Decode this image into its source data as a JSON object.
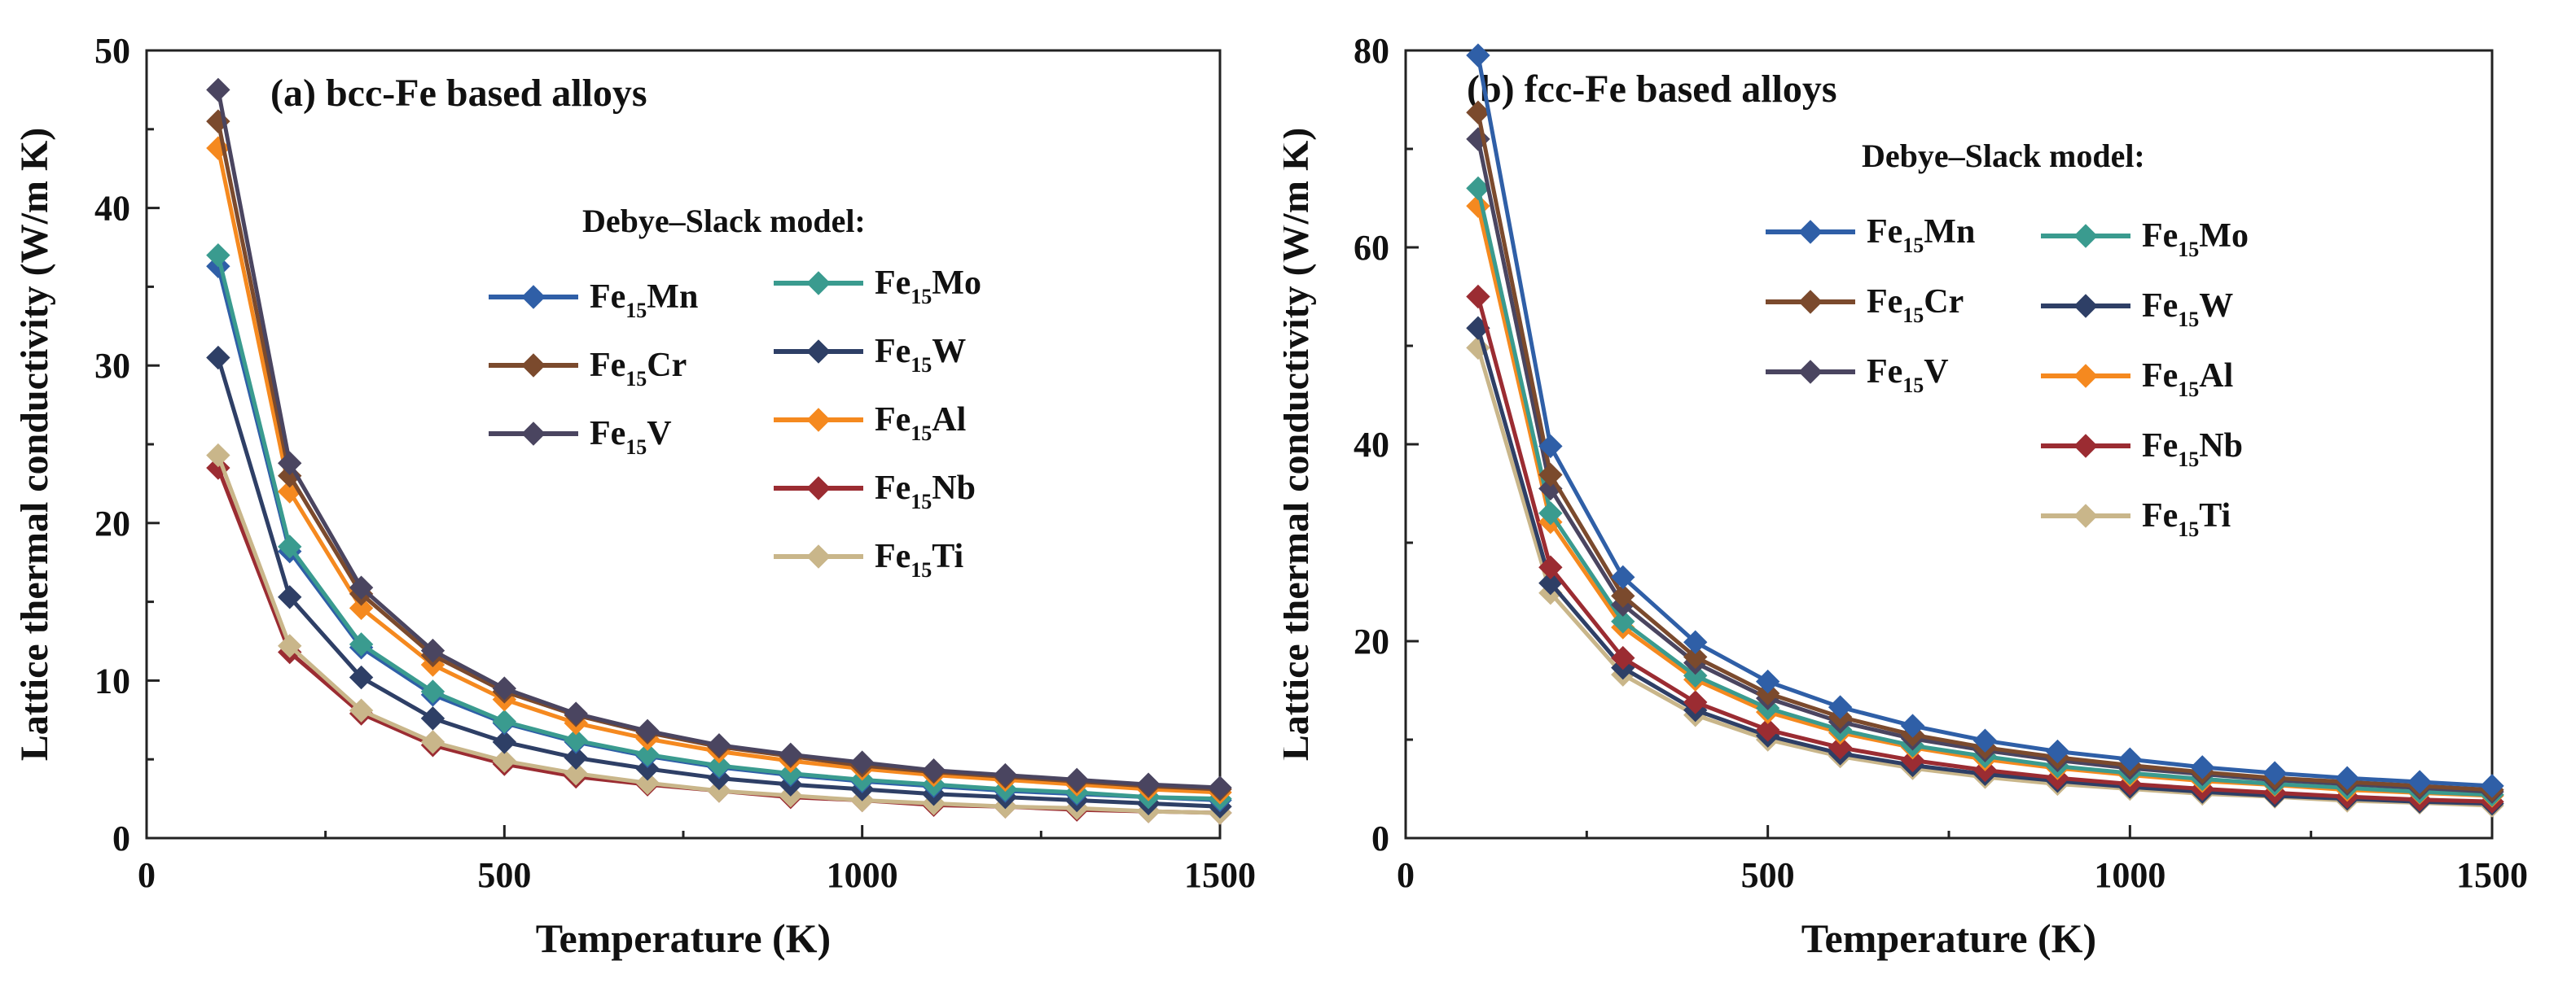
{
  "chart_data": [
    {
      "type": "line",
      "title": "(a) bcc-Fe based alloys",
      "xlabel": "Temperature (K)",
      "ylabel": "Lattice thermal conductivity (W/m K)",
      "xlim": [
        0,
        1500
      ],
      "ylim": [
        0,
        50
      ],
      "xticks": [
        0,
        500,
        1000,
        1500
      ],
      "yticks": [
        0,
        10,
        20,
        30,
        40,
        50
      ],
      "legend_title": "Debye–Slack model:",
      "legend_position": "center-right",
      "grid": false,
      "x": [
        100,
        200,
        300,
        400,
        500,
        600,
        700,
        800,
        900,
        1000,
        1100,
        1200,
        1300,
        1400,
        1500
      ],
      "series": [
        {
          "name": "Fe15Mn",
          "label": {
            "base": "Fe",
            "sub": "15",
            "el": "Mn"
          },
          "color": "#2f5fa7",
          "values": [
            36.3,
            18.2,
            12.1,
            9.1,
            7.3,
            6.1,
            5.2,
            4.5,
            4.0,
            3.6,
            3.3,
            3.0,
            2.8,
            2.6,
            2.4
          ]
        },
        {
          "name": "Fe15Cr",
          "label": {
            "base": "Fe",
            "sub": "15",
            "el": "Cr"
          },
          "color": "#7b4a2d",
          "values": [
            45.5,
            23.0,
            15.5,
            11.6,
            9.3,
            7.8,
            6.7,
            5.8,
            5.2,
            4.6,
            4.2,
            3.9,
            3.6,
            3.3,
            3.1
          ]
        },
        {
          "name": "Fe15V",
          "label": {
            "base": "Fe",
            "sub": "15",
            "el": "V"
          },
          "color": "#4a4560",
          "values": [
            47.5,
            23.8,
            15.9,
            11.9,
            9.5,
            7.9,
            6.8,
            5.9,
            5.3,
            4.8,
            4.3,
            4.0,
            3.7,
            3.4,
            3.2
          ]
        },
        {
          "name": "Fe15Mo",
          "label": {
            "base": "Fe",
            "sub": "15",
            "el": "Mo"
          },
          "color": "#3a9b8f",
          "values": [
            37.0,
            18.5,
            12.3,
            9.3,
            7.4,
            6.2,
            5.3,
            4.6,
            4.1,
            3.7,
            3.4,
            3.1,
            2.9,
            2.6,
            2.5
          ]
        },
        {
          "name": "Fe15W",
          "label": {
            "base": "Fe",
            "sub": "15",
            "el": "W"
          },
          "color": "#2e3f66",
          "values": [
            30.5,
            15.3,
            10.2,
            7.6,
            6.1,
            5.1,
            4.4,
            3.8,
            3.4,
            3.1,
            2.8,
            2.6,
            2.4,
            2.2,
            2.0
          ]
        },
        {
          "name": "Fe15Al",
          "label": {
            "base": "Fe",
            "sub": "15",
            "el": "Al"
          },
          "color": "#f5891f",
          "values": [
            43.8,
            22.0,
            14.6,
            11.0,
            8.8,
            7.3,
            6.3,
            5.5,
            4.9,
            4.4,
            4.0,
            3.7,
            3.4,
            3.1,
            2.9
          ]
        },
        {
          "name": "Fe15Nb",
          "label": {
            "base": "Fe",
            "sub": "15",
            "el": "Nb"
          },
          "color": "#9b2c32",
          "values": [
            23.5,
            11.8,
            7.9,
            5.9,
            4.7,
            3.9,
            3.4,
            3.0,
            2.6,
            2.4,
            2.1,
            2.0,
            1.8,
            1.7,
            1.6
          ]
        },
        {
          "name": "Fe15Ti",
          "label": {
            "base": "Fe",
            "sub": "15",
            "el": "Ti"
          },
          "color": "#c9b68a",
          "values": [
            24.3,
            12.2,
            8.1,
            6.1,
            4.9,
            4.1,
            3.5,
            3.0,
            2.7,
            2.4,
            2.2,
            2.0,
            1.9,
            1.7,
            1.6
          ]
        }
      ]
    },
    {
      "type": "line",
      "title": "(b) fcc-Fe based alloys",
      "xlabel": "Temperature (K)",
      "ylabel": "Lattice thermal conductivity (W/m K)",
      "xlim": [
        0,
        1500
      ],
      "ylim": [
        0,
        80
      ],
      "xticks": [
        0,
        500,
        1000,
        1500
      ],
      "yticks": [
        0,
        20,
        40,
        60,
        80
      ],
      "legend_title": "Debye–Slack model:",
      "legend_position": "upper-right",
      "grid": false,
      "x": [
        100,
        200,
        300,
        400,
        500,
        600,
        700,
        800,
        900,
        1000,
        1100,
        1200,
        1300,
        1400,
        1500
      ],
      "series": [
        {
          "name": "Fe15Mn",
          "label": {
            "base": "Fe",
            "sub": "15",
            "el": "Mn"
          },
          "color": "#2f5fa7",
          "values": [
            79.5,
            39.8,
            26.5,
            19.9,
            15.9,
            13.3,
            11.4,
            9.9,
            8.8,
            8.0,
            7.2,
            6.6,
            6.1,
            5.7,
            5.3
          ]
        },
        {
          "name": "Fe15Cr",
          "label": {
            "base": "Fe",
            "sub": "15",
            "el": "Cr"
          },
          "color": "#7b4a2d",
          "values": [
            73.7,
            36.9,
            24.6,
            18.4,
            14.7,
            12.3,
            10.5,
            9.2,
            8.2,
            7.4,
            6.7,
            6.1,
            5.7,
            5.3,
            4.9
          ]
        },
        {
          "name": "Fe15V",
          "label": {
            "base": "Fe",
            "sub": "15",
            "el": "V"
          },
          "color": "#4a4560",
          "values": [
            71.0,
            35.5,
            23.7,
            17.8,
            14.2,
            11.8,
            10.1,
            8.9,
            7.9,
            7.1,
            6.5,
            5.9,
            5.5,
            5.1,
            4.7
          ]
        },
        {
          "name": "Fe15Mo",
          "label": {
            "base": "Fe",
            "sub": "15",
            "el": "Mo"
          },
          "color": "#3a9b8f",
          "values": [
            66.0,
            33.0,
            22.0,
            16.5,
            13.2,
            11.0,
            9.4,
            8.3,
            7.3,
            6.6,
            6.0,
            5.5,
            5.1,
            4.7,
            4.4
          ]
        },
        {
          "name": "Fe15W",
          "label": {
            "base": "Fe",
            "sub": "15",
            "el": "W"
          },
          "color": "#2e3f66",
          "values": [
            51.8,
            25.9,
            17.3,
            13.0,
            10.4,
            8.6,
            7.4,
            6.5,
            5.8,
            5.2,
            4.7,
            4.3,
            4.0,
            3.7,
            3.5
          ]
        },
        {
          "name": "Fe15Al",
          "label": {
            "base": "Fe",
            "sub": "15",
            "el": "Al"
          },
          "color": "#f5891f",
          "values": [
            64.2,
            32.1,
            21.4,
            16.1,
            12.8,
            10.7,
            9.2,
            8.0,
            7.1,
            6.4,
            5.8,
            5.4,
            4.9,
            4.6,
            4.3
          ]
        },
        {
          "name": "Fe15Nb",
          "label": {
            "base": "Fe",
            "sub": "15",
            "el": "Nb"
          },
          "color": "#9b2c32",
          "values": [
            55.0,
            27.5,
            18.3,
            13.8,
            11.0,
            9.2,
            7.9,
            6.9,
            6.1,
            5.5,
            5.0,
            4.6,
            4.2,
            3.9,
            3.7
          ]
        },
        {
          "name": "Fe15Ti",
          "label": {
            "base": "Fe",
            "sub": "15",
            "el": "Ti"
          },
          "color": "#c9b68a",
          "values": [
            49.8,
            24.9,
            16.6,
            12.5,
            10.0,
            8.3,
            7.1,
            6.2,
            5.5,
            5.0,
            4.5,
            4.2,
            3.8,
            3.6,
            3.3
          ]
        }
      ]
    }
  ]
}
